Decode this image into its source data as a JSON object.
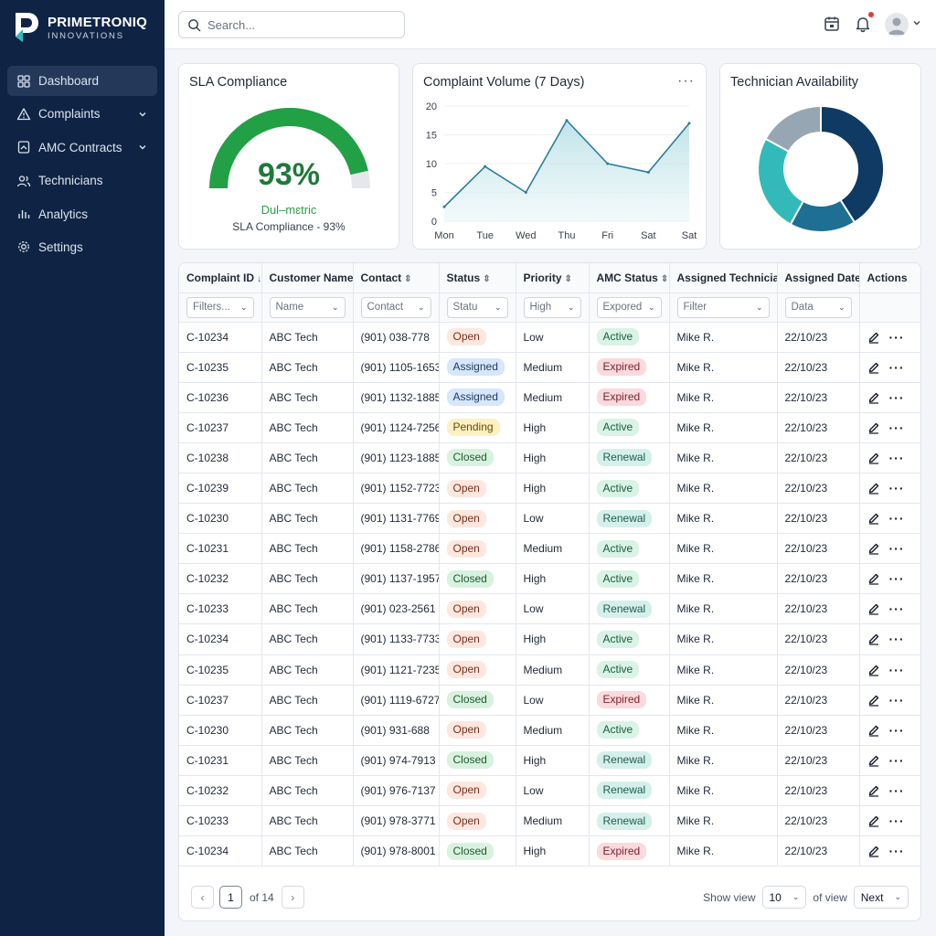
{
  "brand": {
    "name": "PRIMETRONIQ",
    "sub": "INNOVATIONS"
  },
  "sidebar": {
    "items": [
      {
        "label": "Dashboard",
        "icon": "dashboard-icon",
        "active": true,
        "chevron": false
      },
      {
        "label": "Complaints",
        "icon": "alert-triangle-icon",
        "active": false,
        "chevron": true
      },
      {
        "label": "AMC Contracts",
        "icon": "contract-icon",
        "active": false,
        "chevron": true
      },
      {
        "label": "Technicians",
        "icon": "users-icon",
        "active": false,
        "chevron": false
      },
      {
        "label": "Analytics",
        "icon": "analytics-icon",
        "active": false,
        "chevron": false
      },
      {
        "label": "Settings",
        "icon": "gear-icon",
        "active": false,
        "chevron": false
      }
    ]
  },
  "search": {
    "placeholder": "Search..."
  },
  "cards": {
    "sla": {
      "title": "SLA Compliance",
      "value": "93%",
      "percent": 93,
      "sub1": "Dul–mɛtric",
      "sub2": "SLA Compliance - 93%",
      "color": "#22a045"
    },
    "volume": {
      "title": "Complaint Volume (7 Days)",
      "more": "···"
    },
    "tech": {
      "title": "Technician Availability"
    }
  },
  "chart_data": [
    {
      "type": "area",
      "title": "Complaint Volume (7 Days)",
      "categories": [
        "Mon",
        "Tue",
        "Wed",
        "Thu",
        "Fri",
        "Sat",
        "Sat"
      ],
      "values": [
        2.5,
        9.5,
        5,
        17.5,
        10,
        8.5,
        17
      ],
      "ylim": [
        0,
        20
      ],
      "yticks": [
        "20",
        "15",
        "10",
        "5",
        "0"
      ],
      "color": "#2a7d9c"
    },
    {
      "type": "pie",
      "title": "Technician Availability",
      "donut": true,
      "slices": [
        {
          "value": 41,
          "color": "#0f3a63"
        },
        {
          "value": 17,
          "color": "#1f6e94"
        },
        {
          "value": 25,
          "color": "#33b9ba"
        },
        {
          "value": 17,
          "color": "#97a6b3"
        }
      ]
    }
  ],
  "table": {
    "headers": [
      {
        "label": "Complaint ID",
        "sort": "↓"
      },
      {
        "label": "Customer Name",
        "sort": ""
      },
      {
        "label": "Contact",
        "sort": "⇕"
      },
      {
        "label": "Status",
        "sort": "⇕"
      },
      {
        "label": "Priority",
        "sort": "⇕"
      },
      {
        "label": "AMC Status",
        "sort": "⇕"
      },
      {
        "label": "Assigned Technician",
        "sort": ""
      },
      {
        "label": "Assigned Date",
        "sort": ""
      },
      {
        "label": "Actions",
        "sort": ""
      }
    ],
    "filters": [
      "Filters...",
      "Name",
      "Contact",
      "Statu",
      "High",
      "Expored",
      "Filter",
      "Data"
    ],
    "rows": [
      [
        "C-10234",
        "ABC Tech",
        "(901) 038-778",
        "Open",
        "Low",
        "Active",
        "Mike R.",
        "22/10/23"
      ],
      [
        "C-10235",
        "ABC Tech",
        "(901) 1105-1653",
        "Assigned",
        "Medium",
        "Expired",
        "Mike R.",
        "22/10/23"
      ],
      [
        "C-10236",
        "ABC Tech",
        "(901) 1132-1885",
        "Assigned",
        "Medium",
        "Expired",
        "Mike R.",
        "22/10/23"
      ],
      [
        "C-10237",
        "ABC Tech",
        "(901) 1124-7256",
        "Pending",
        "High",
        "Active",
        "Mike R.",
        "22/10/23"
      ],
      [
        "C-10238",
        "ABC Tech",
        "(901) 1123-1885",
        "Closed",
        "High",
        "Renewal",
        "Mike R.",
        "22/10/23"
      ],
      [
        "C-10239",
        "ABC Tech",
        "(901) 1152-7723",
        "Open",
        "High",
        "Active",
        "Mike R.",
        "22/10/23"
      ],
      [
        "C-10230",
        "ABC Tech",
        "(901) 1131-7769",
        "Open",
        "Low",
        "Renewal",
        "Mike R.",
        "22/10/23"
      ],
      [
        "C-10231",
        "ABC Tech",
        "(901) 1158-2786",
        "Open",
        "Medium",
        "Active",
        "Mike R.",
        "22/10/23"
      ],
      [
        "C-10232",
        "ABC Tech",
        "(901) 1137-1957",
        "Closed",
        "High",
        "Active",
        "Mike R.",
        "22/10/23"
      ],
      [
        "C-10233",
        "ABC Tech",
        "(901) 023-2561",
        "Open",
        "Low",
        "Renewal",
        "Mike R.",
        "22/10/23"
      ],
      [
        "C-10234",
        "ABC Tech",
        "(901) 1133-7733",
        "Open",
        "High",
        "Active",
        "Mike R.",
        "22/10/23"
      ],
      [
        "C-10235",
        "ABC Tech",
        "(901) 1121-7235",
        "Open",
        "Medium",
        "Active",
        "Mike R.",
        "22/10/23"
      ],
      [
        "C-10237",
        "ABC Tech",
        "(901) 1119-6727",
        "Closed",
        "Low",
        "Expired",
        "Mike R.",
        "22/10/23"
      ],
      [
        "C-10230",
        "ABC Tech",
        "(901) 931-688",
        "Open",
        "Medium",
        "Active",
        "Mike R.",
        "22/10/23"
      ],
      [
        "C-10231",
        "ABC Tech",
        "(901) 974-7913",
        "Closed",
        "High",
        "Renewal",
        "Mike R.",
        "22/10/23"
      ],
      [
        "C-10232",
        "ABC Tech",
        "(901) 976-7137",
        "Open",
        "Low",
        "Renewal",
        "Mike R.",
        "22/10/23"
      ],
      [
        "C-10233",
        "ABC Tech",
        "(901) 978-3771",
        "Open",
        "Medium",
        "Renewal",
        "Mike R.",
        "22/10/23"
      ],
      [
        "C-10234",
        "ABC Tech",
        "(901) 978-8001",
        "Closed",
        "High",
        "Expired",
        "Mike R.",
        "22/10/23"
      ]
    ]
  },
  "pagination": {
    "current": "1",
    "of_label": "of 14",
    "prev": "‹",
    "next_arrow": "›",
    "show_label": "Show view",
    "page_size": "10",
    "of_view": "of view",
    "next_label": "Next"
  }
}
